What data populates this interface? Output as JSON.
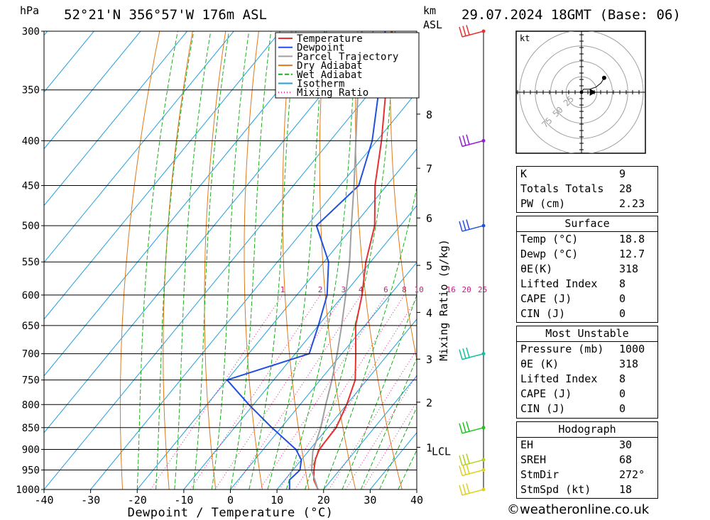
{
  "header": {
    "location": "52°21'N 356°57'W 176m ASL",
    "datetime": "29.07.2024 18GMT (Base: 06)",
    "p_unit": "hPa",
    "km_unit": "km",
    "asl_unit": "ASL"
  },
  "footer": {
    "credit": "weatheronline.co.uk",
    "copyright": "©"
  },
  "chart_data": {
    "type": "line",
    "xlabel": "Dewpoint / Temperature (°C)",
    "ylabel_right": "Mixing Ratio (g/kg)",
    "x_ticks": [
      -40,
      -30,
      -20,
      -10,
      0,
      10,
      20,
      30,
      40
    ],
    "xlim": [
      -40,
      40
    ],
    "ylim": [
      1000,
      300
    ],
    "pressure_levels": [
      300,
      350,
      400,
      450,
      500,
      550,
      600,
      650,
      700,
      750,
      800,
      850,
      900,
      950,
      1000
    ],
    "km_ticks": [
      {
        "label": "1",
        "p": 895
      },
      {
        "label": "2",
        "p": 795
      },
      {
        "label": "3",
        "p": 710
      },
      {
        "label": "4",
        "p": 628
      },
      {
        "label": "5",
        "p": 555
      },
      {
        "label": "6",
        "p": 490
      },
      {
        "label": "7",
        "p": 430
      },
      {
        "label": "8",
        "p": 373
      }
    ],
    "lcl": {
      "label": "LCL",
      "p": 905
    },
    "mixing_ratio_labels": [
      "1",
      "2",
      "3",
      "4",
      "6",
      "8",
      "10",
      "16",
      "20",
      "25"
    ],
    "mixing_ratios": [
      1,
      2,
      3,
      4,
      6,
      8,
      10,
      16,
      20,
      25
    ],
    "legend": [
      {
        "name": "Temperature",
        "color": "#e83030",
        "dash": ""
      },
      {
        "name": "Dewpoint",
        "color": "#2050e0",
        "dash": ""
      },
      {
        "name": "Parcel Trajectory",
        "color": "#a0a0a0",
        "dash": ""
      },
      {
        "name": "Dry Adiabat",
        "color": "#e07818",
        "dash": ""
      },
      {
        "name": "Wet Adiabat",
        "color": "#18b018",
        "dash": "6,3"
      },
      {
        "name": "Isotherm",
        "color": "#20a0e0",
        "dash": ""
      },
      {
        "name": "Mixing Ratio",
        "color": "#e0208c",
        "dash": "1,3"
      }
    ],
    "series": [
      {
        "name": "Temperature",
        "color": "#e83030",
        "points": [
          {
            "p": 1000,
            "t": 18.8
          },
          {
            "p": 975,
            "t": 16.2
          },
          {
            "p": 950,
            "t": 14.5
          },
          {
            "p": 925,
            "t": 13.0
          },
          {
            "p": 900,
            "t": 12.0
          },
          {
            "p": 850,
            "t": 11.8
          },
          {
            "p": 800,
            "t": 10.0
          },
          {
            "p": 750,
            "t": 7.5
          },
          {
            "p": 700,
            "t": 3.0
          },
          {
            "p": 650,
            "t": -2.0
          },
          {
            "p": 600,
            "t": -6.0
          },
          {
            "p": 550,
            "t": -11.0
          },
          {
            "p": 500,
            "t": -15.5
          },
          {
            "p": 450,
            "t": -22.5
          },
          {
            "p": 400,
            "t": -29.0
          },
          {
            "p": 350,
            "t": -37.0
          },
          {
            "p": 300,
            "t": -46.0
          }
        ]
      },
      {
        "name": "Dewpoint",
        "color": "#2050e0",
        "points": [
          {
            "p": 1000,
            "t": 12.7
          },
          {
            "p": 975,
            "t": 11.0
          },
          {
            "p": 950,
            "t": 11.5
          },
          {
            "p": 925,
            "t": 10.0
          },
          {
            "p": 900,
            "t": 7.0
          },
          {
            "p": 850,
            "t": -2.0
          },
          {
            "p": 800,
            "t": -11.0
          },
          {
            "p": 750,
            "t": -20.0
          },
          {
            "p": 700,
            "t": -7.0
          },
          {
            "p": 650,
            "t": -10.0
          },
          {
            "p": 600,
            "t": -13.5
          },
          {
            "p": 550,
            "t": -19.0
          },
          {
            "p": 500,
            "t": -28.0
          },
          {
            "p": 450,
            "t": -26.0
          },
          {
            "p": 400,
            "t": -31.0
          },
          {
            "p": 350,
            "t": -38.5
          },
          {
            "p": 300,
            "t": -47.5
          }
        ]
      },
      {
        "name": "Parcel Trajectory",
        "color": "#a0a0a0",
        "points": [
          {
            "p": 1000,
            "t": 18.8
          },
          {
            "p": 950,
            "t": 14.0
          },
          {
            "p": 905,
            "t": 11.0
          },
          {
            "p": 850,
            "t": 8.5
          },
          {
            "p": 800,
            "t": 5.5
          },
          {
            "p": 750,
            "t": 2.5
          },
          {
            "p": 700,
            "t": -1.0
          },
          {
            "p": 650,
            "t": -5.0
          },
          {
            "p": 600,
            "t": -9.5
          },
          {
            "p": 550,
            "t": -14.5
          },
          {
            "p": 500,
            "t": -20.5
          },
          {
            "p": 450,
            "t": -27.0
          },
          {
            "p": 400,
            "t": -34.5
          },
          {
            "p": 350,
            "t": -43.0
          },
          {
            "p": 300,
            "t": -52.5
          }
        ]
      }
    ],
    "wind_barbs": [
      {
        "p": 300,
        "color": "#e83030"
      },
      {
        "p": 400,
        "color": "#9020d0"
      },
      {
        "p": 500,
        "color": "#2050e0"
      },
      {
        "p": 700,
        "color": "#10c0a0"
      },
      {
        "p": 850,
        "color": "#20c020"
      },
      {
        "p": 925,
        "color": "#b0d020"
      },
      {
        "p": 950,
        "color": "#e0d020"
      },
      {
        "p": 1000,
        "color": "#e0d020"
      }
    ]
  },
  "hodograph": {
    "unit": "kt",
    "rings": [
      "25",
      "50",
      "75"
    ],
    "trace": [
      {
        "u": 0,
        "v": 0
      },
      {
        "u": 2,
        "v": 3
      },
      {
        "u": 8,
        "v": 3
      },
      {
        "u": 14,
        "v": 5
      },
      {
        "u": 19,
        "v": 9
      },
      {
        "u": 22,
        "v": 14
      }
    ],
    "storm_motion": {
      "u": 18,
      "v": 0
    }
  },
  "indices": {
    "rows": [
      {
        "label": "K",
        "value": "9"
      },
      {
        "label": "Totals Totals",
        "value": "28"
      },
      {
        "label": "PW (cm)",
        "value": "2.23"
      }
    ]
  },
  "surface": {
    "title": "Surface",
    "rows": [
      {
        "label": "Temp (°C)",
        "value": "18.8"
      },
      {
        "label": "Dewp (°C)",
        "value": "12.7"
      },
      {
        "label": "θE(K)",
        "value": "318"
      },
      {
        "label": "Lifted Index",
        "value": "8"
      },
      {
        "label": "CAPE (J)",
        "value": "0"
      },
      {
        "label": "CIN (J)",
        "value": "0"
      }
    ]
  },
  "most_unstable": {
    "title": "Most Unstable",
    "rows": [
      {
        "label": "Pressure (mb)",
        "value": "1000"
      },
      {
        "label": "θE (K)",
        "value": "318"
      },
      {
        "label": "Lifted Index",
        "value": "8"
      },
      {
        "label": "CAPE (J)",
        "value": "0"
      },
      {
        "label": "CIN (J)",
        "value": "0"
      }
    ]
  },
  "hodo_table": {
    "title": "Hodograph",
    "rows": [
      {
        "label": "EH",
        "value": "30"
      },
      {
        "label": "SREH",
        "value": "68"
      },
      {
        "label": "StmDir",
        "value": "272°"
      },
      {
        "label": "StmSpd (kt)",
        "value": "18"
      }
    ]
  }
}
